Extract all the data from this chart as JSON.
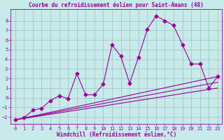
{
  "title": "Courbe du refroidissement éolien pour Saint-Amans (48)",
  "xlabel": "Windchill (Refroidissement éolien,°C)",
  "bg_color": "#c8eaea",
  "grid_color": "#a0c8c8",
  "line_color": "#990099",
  "xlim": [
    -0.5,
    23.5
  ],
  "ylim": [
    -2.7,
    9.2
  ],
  "xticks": [
    0,
    1,
    2,
    3,
    4,
    5,
    6,
    7,
    8,
    9,
    10,
    11,
    12,
    13,
    14,
    15,
    16,
    17,
    18,
    19,
    20,
    21,
    22,
    23
  ],
  "yticks": [
    -2,
    -1,
    0,
    1,
    2,
    3,
    4,
    5,
    6,
    7,
    8
  ],
  "line1_x": [
    0,
    1,
    2,
    3,
    4,
    5,
    6,
    7,
    8,
    9,
    10,
    11,
    12,
    13,
    14,
    15,
    16,
    17,
    18,
    19,
    20,
    21,
    22,
    23
  ],
  "line1_y": [
    -2.3,
    -2.1,
    -1.3,
    -1.1,
    -0.3,
    0.2,
    -0.1,
    2.5,
    0.3,
    0.3,
    1.4,
    5.5,
    4.3,
    1.5,
    4.2,
    7.1,
    8.5,
    8.0,
    7.5,
    5.5,
    3.5,
    3.5,
    1.0,
    2.2
  ],
  "line2_x": [
    0,
    23
  ],
  "line2_y": [
    -2.3,
    2.2
  ],
  "line3_x": [
    0,
    23
  ],
  "line3_y": [
    -2.3,
    1.6
  ],
  "line4_x": [
    0,
    23
  ],
  "line4_y": [
    -2.3,
    1.0
  ],
  "title_fontsize": 5.5,
  "xlabel_fontsize": 5.5,
  "tick_fontsize": 5
}
